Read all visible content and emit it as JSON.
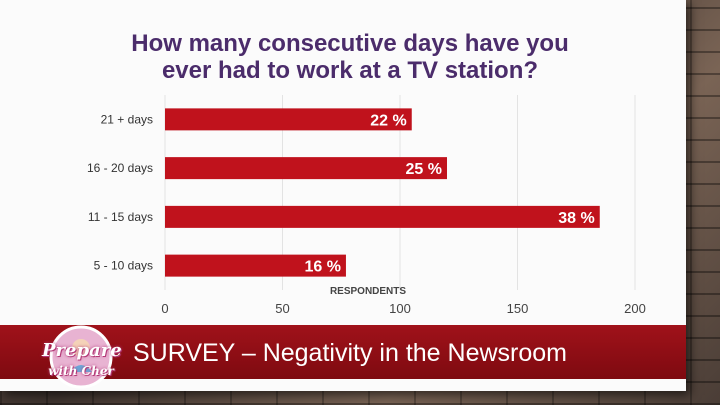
{
  "slide": {
    "title_line1": "How many consecutive days have you",
    "title_line2": "ever had to work at a TV station?",
    "footer": "SURVEY – Negativity in the Newsroom",
    "logo_line1": "Prepare",
    "logo_line2": "with Cher"
  },
  "chart_data": {
    "type": "bar",
    "orientation": "horizontal",
    "categories": [
      "21 + days",
      "16 - 20 days",
      "11 - 15 days",
      "5 - 10 days"
    ],
    "values": [
      105,
      120,
      185,
      77
    ],
    "data_labels": [
      "22 %",
      "25 %",
      "38 %",
      "16 %"
    ],
    "xlabel": "RESPONDENTS",
    "xticks": [
      0,
      50,
      100,
      150,
      200
    ],
    "xlim": [
      0,
      200
    ],
    "grid": "vertical",
    "bar_color": "#c0121c"
  }
}
